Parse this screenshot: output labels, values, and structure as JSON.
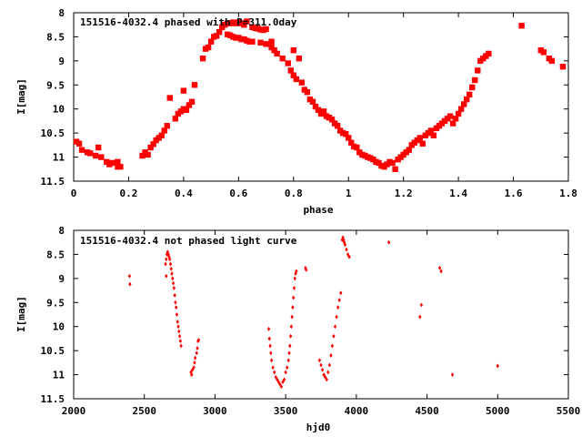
{
  "chart_data": [
    {
      "type": "scatter",
      "title": "151516-4032.4 phased with P=311.0day",
      "xlabel": "phase",
      "ylabel": "I[mag]",
      "xlim": [
        0,
        1.8
      ],
      "ylim": [
        8,
        11.5
      ],
      "y_inverted": true,
      "x_ticks": [
        "0",
        "0.2",
        "0.4",
        "0.6",
        "0.8",
        "1",
        "1.2",
        "1.4",
        "1.6",
        "1.8"
      ],
      "y_ticks": [
        "8",
        "8.5",
        "9",
        "9.5",
        "10",
        "10.5",
        "11",
        "11.5"
      ],
      "color": "#ff0000",
      "marker": "filled-square",
      "grid": false,
      "points": [
        [
          0.01,
          10.68
        ],
        [
          0.02,
          10.72
        ],
        [
          0.03,
          10.85
        ],
        [
          0.05,
          10.9
        ],
        [
          0.06,
          10.92
        ],
        [
          0.08,
          10.97
        ],
        [
          0.09,
          10.8
        ],
        [
          0.1,
          11.0
        ],
        [
          0.12,
          11.1
        ],
        [
          0.13,
          11.15
        ],
        [
          0.14,
          11.12
        ],
        [
          0.16,
          11.1
        ],
        [
          0.16,
          11.2
        ],
        [
          0.17,
          11.2
        ],
        [
          0.25,
          10.97
        ],
        [
          0.26,
          10.9
        ],
        [
          0.27,
          10.95
        ],
        [
          0.28,
          10.8
        ],
        [
          0.29,
          10.73
        ],
        [
          0.3,
          10.65
        ],
        [
          0.31,
          10.6
        ],
        [
          0.32,
          10.55
        ],
        [
          0.33,
          10.45
        ],
        [
          0.34,
          10.35
        ],
        [
          0.35,
          9.77
        ],
        [
          0.37,
          10.2
        ],
        [
          0.38,
          10.1
        ],
        [
          0.39,
          10.05
        ],
        [
          0.4,
          10.0
        ],
        [
          0.4,
          9.62
        ],
        [
          0.41,
          10.02
        ],
        [
          0.42,
          9.92
        ],
        [
          0.43,
          9.85
        ],
        [
          0.44,
          9.5
        ],
        [
          0.47,
          8.95
        ],
        [
          0.48,
          8.75
        ],
        [
          0.49,
          8.72
        ],
        [
          0.5,
          8.6
        ],
        [
          0.51,
          8.5
        ],
        [
          0.52,
          8.48
        ],
        [
          0.53,
          8.4
        ],
        [
          0.54,
          8.3
        ],
        [
          0.55,
          8.25
        ],
        [
          0.56,
          8.22
        ],
        [
          0.57,
          8.22
        ],
        [
          0.58,
          8.2
        ],
        [
          0.59,
          8.22
        ],
        [
          0.6,
          8.2
        ],
        [
          0.61,
          8.22
        ],
        [
          0.62,
          8.25
        ],
        [
          0.63,
          8.18
        ],
        [
          0.56,
          8.45
        ],
        [
          0.57,
          8.47
        ],
        [
          0.58,
          8.5
        ],
        [
          0.59,
          8.52
        ],
        [
          0.6,
          8.52
        ],
        [
          0.61,
          8.55
        ],
        [
          0.62,
          8.55
        ],
        [
          0.63,
          8.58
        ],
        [
          0.64,
          8.6
        ],
        [
          0.65,
          8.6
        ],
        [
          0.65,
          8.3
        ],
        [
          0.66,
          8.32
        ],
        [
          0.67,
          8.33
        ],
        [
          0.68,
          8.35
        ],
        [
          0.69,
          8.36
        ],
        [
          0.7,
          8.34
        ],
        [
          0.72,
          8.6
        ],
        [
          0.68,
          8.62
        ],
        [
          0.7,
          8.65
        ],
        [
          0.72,
          8.72
        ],
        [
          0.73,
          8.78
        ],
        [
          0.74,
          8.85
        ],
        [
          0.76,
          8.95
        ],
        [
          0.78,
          9.05
        ],
        [
          0.79,
          9.2
        ],
        [
          0.8,
          9.3
        ],
        [
          0.81,
          9.38
        ],
        [
          0.8,
          8.78
        ],
        [
          0.82,
          8.95
        ],
        [
          0.83,
          9.45
        ],
        [
          0.84,
          9.6
        ],
        [
          0.85,
          9.65
        ],
        [
          0.86,
          9.8
        ],
        [
          0.87,
          9.85
        ],
        [
          0.88,
          9.95
        ],
        [
          0.89,
          10.02
        ],
        [
          0.9,
          10.1
        ],
        [
          0.91,
          10.05
        ],
        [
          0.92,
          10.15
        ],
        [
          0.93,
          10.18
        ],
        [
          0.94,
          10.22
        ],
        [
          0.95,
          10.3
        ],
        [
          0.96,
          10.35
        ],
        [
          0.97,
          10.45
        ],
        [
          0.98,
          10.5
        ],
        [
          0.99,
          10.52
        ],
        [
          1.0,
          10.6
        ],
        [
          1.01,
          10.7
        ],
        [
          1.02,
          10.78
        ],
        [
          1.03,
          10.8
        ],
        [
          1.04,
          10.9
        ],
        [
          1.05,
          10.95
        ],
        [
          1.06,
          10.97
        ],
        [
          1.07,
          11.0
        ],
        [
          1.08,
          11.02
        ],
        [
          1.09,
          11.05
        ],
        [
          1.1,
          11.1
        ],
        [
          1.11,
          11.12
        ],
        [
          1.12,
          11.18
        ],
        [
          1.13,
          11.2
        ],
        [
          1.14,
          11.15
        ],
        [
          1.15,
          11.1
        ],
        [
          1.16,
          11.12
        ],
        [
          1.17,
          11.25
        ],
        [
          1.18,
          11.05
        ],
        [
          1.19,
          11.0
        ],
        [
          1.2,
          10.95
        ],
        [
          1.21,
          10.9
        ],
        [
          1.22,
          10.85
        ],
        [
          1.23,
          10.75
        ],
        [
          1.24,
          10.7
        ],
        [
          1.25,
          10.65
        ],
        [
          1.26,
          10.6
        ],
        [
          1.27,
          10.72
        ],
        [
          1.28,
          10.55
        ],
        [
          1.29,
          10.5
        ],
        [
          1.3,
          10.45
        ],
        [
          1.31,
          10.55
        ],
        [
          1.32,
          10.4
        ],
        [
          1.33,
          10.35
        ],
        [
          1.34,
          10.3
        ],
        [
          1.35,
          10.25
        ],
        [
          1.36,
          10.2
        ],
        [
          1.37,
          10.15
        ],
        [
          1.38,
          10.3
        ],
        [
          1.39,
          10.2
        ],
        [
          1.4,
          10.1
        ],
        [
          1.41,
          10.0
        ],
        [
          1.42,
          9.9
        ],
        [
          1.43,
          9.8
        ],
        [
          1.44,
          9.7
        ],
        [
          1.45,
          9.55
        ],
        [
          1.46,
          9.4
        ],
        [
          1.47,
          9.2
        ],
        [
          1.48,
          9.0
        ],
        [
          1.49,
          8.95
        ],
        [
          1.5,
          8.9
        ],
        [
          1.51,
          8.85
        ],
        [
          1.63,
          8.27
        ],
        [
          1.7,
          8.78
        ],
        [
          1.71,
          8.82
        ],
        [
          1.73,
          8.95
        ],
        [
          1.74,
          9.0
        ],
        [
          1.78,
          9.12
        ]
      ]
    },
    {
      "type": "scatter",
      "title": "151516-4032.4 not phased light curve",
      "xlabel": "hjd0",
      "ylabel": "I[mag]",
      "xlim": [
        2000,
        5500
      ],
      "ylim": [
        8,
        11.5
      ],
      "y_inverted": true,
      "x_ticks": [
        "2000",
        "2500",
        "3000",
        "3500",
        "4000",
        "4500",
        "5000",
        "5500"
      ],
      "y_ticks": [
        "8",
        "8.5",
        "9",
        "9.5",
        "10",
        "10.5",
        "11",
        "11.5"
      ],
      "color": "#ff0000",
      "marker": "filled-diamond",
      "grid": false,
      "points": [
        [
          2395,
          8.95
        ],
        [
          2398,
          9.12
        ],
        [
          2650,
          8.7
        ],
        [
          2655,
          8.6
        ],
        [
          2660,
          8.5
        ],
        [
          2665,
          8.45
        ],
        [
          2670,
          8.5
        ],
        [
          2675,
          8.55
        ],
        [
          2680,
          8.6
        ],
        [
          2685,
          8.7
        ],
        [
          2690,
          8.8
        ],
        [
          2695,
          8.9
        ],
        [
          2700,
          9.0
        ],
        [
          2705,
          9.1
        ],
        [
          2710,
          9.2
        ],
        [
          2715,
          9.35
        ],
        [
          2720,
          9.5
        ],
        [
          2725,
          9.6
        ],
        [
          2730,
          9.75
        ],
        [
          2735,
          9.9
        ],
        [
          2740,
          10.0
        ],
        [
          2745,
          10.1
        ],
        [
          2750,
          10.2
        ],
        [
          2755,
          10.3
        ],
        [
          2760,
          10.4
        ],
        [
          2655,
          8.95
        ],
        [
          2830,
          10.95
        ],
        [
          2835,
          11.0
        ],
        [
          2840,
          10.9
        ],
        [
          2850,
          10.85
        ],
        [
          2855,
          10.75
        ],
        [
          2860,
          10.65
        ],
        [
          2870,
          10.55
        ],
        [
          2875,
          10.45
        ],
        [
          2880,
          10.3
        ],
        [
          2885,
          10.28
        ],
        [
          3380,
          10.05
        ],
        [
          3385,
          10.25
        ],
        [
          3390,
          10.4
        ],
        [
          3395,
          10.55
        ],
        [
          3400,
          10.7
        ],
        [
          3410,
          10.85
        ],
        [
          3420,
          10.95
        ],
        [
          3430,
          11.05
        ],
        [
          3440,
          11.1
        ],
        [
          3450,
          11.15
        ],
        [
          3460,
          11.2
        ],
        [
          3470,
          11.25
        ],
        [
          3480,
          11.15
        ],
        [
          3490,
          11.1
        ],
        [
          3500,
          10.95
        ],
        [
          3510,
          10.85
        ],
        [
          3520,
          10.7
        ],
        [
          3525,
          10.55
        ],
        [
          3530,
          10.4
        ],
        [
          3535,
          10.2
        ],
        [
          3540,
          10.0
        ],
        [
          3545,
          9.8
        ],
        [
          3550,
          9.6
        ],
        [
          3555,
          9.4
        ],
        [
          3560,
          9.2
        ],
        [
          3565,
          9.0
        ],
        [
          3570,
          8.9
        ],
        [
          3575,
          8.85
        ],
        [
          3640,
          8.78
        ],
        [
          3645,
          8.82
        ],
        [
          3740,
          10.7
        ],
        [
          3750,
          10.8
        ],
        [
          3760,
          10.9
        ],
        [
          3770,
          11.0
        ],
        [
          3780,
          11.05
        ],
        [
          3790,
          11.1
        ],
        [
          3800,
          10.95
        ],
        [
          3810,
          10.8
        ],
        [
          3820,
          10.6
        ],
        [
          3830,
          10.4
        ],
        [
          3840,
          10.2
        ],
        [
          3850,
          10.0
        ],
        [
          3860,
          9.8
        ],
        [
          3870,
          9.6
        ],
        [
          3880,
          9.45
        ],
        [
          3890,
          9.3
        ],
        [
          3900,
          8.2
        ],
        [
          3905,
          8.15
        ],
        [
          3910,
          8.2
        ],
        [
          3915,
          8.25
        ],
        [
          3920,
          8.3
        ],
        [
          3930,
          8.4
        ],
        [
          3940,
          8.5
        ],
        [
          3950,
          8.55
        ],
        [
          4230,
          8.25
        ],
        [
          4450,
          9.8
        ],
        [
          4460,
          9.55
        ],
        [
          4590,
          8.78
        ],
        [
          4600,
          8.85
        ],
        [
          4680,
          11.0
        ],
        [
          5000,
          10.82
        ]
      ]
    }
  ]
}
